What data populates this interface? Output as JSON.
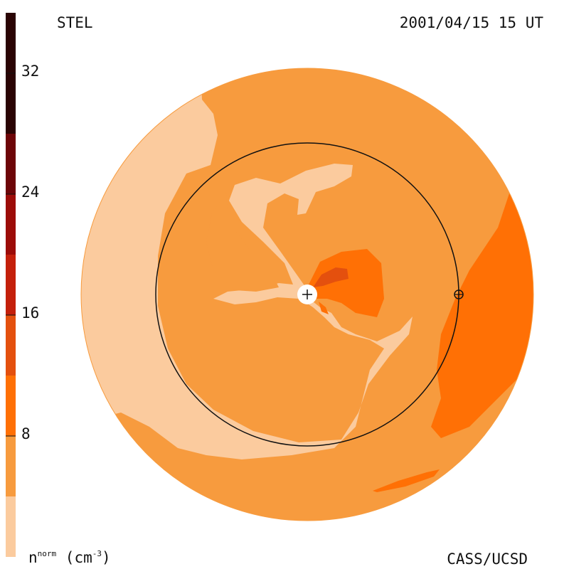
{
  "header": {
    "model": "STEL",
    "datetime": "2001/04/15 15 UT"
  },
  "footer": {
    "credit": "CASS/UCSD"
  },
  "colorbar": {
    "unit_prefix": "n",
    "unit_sup": "norm",
    "unit_suffix": " (cm",
    "unit_exp": "-3",
    "unit_close": ")",
    "ticks": [
      "32",
      "24",
      "16",
      "8"
    ],
    "levels": [
      {
        "from": 0,
        "to": 4,
        "color": "#fbcb9e"
      },
      {
        "from": 4,
        "to": 8,
        "color": "#f79b3e"
      },
      {
        "from": 8,
        "to": 12,
        "color": "#ff7005"
      },
      {
        "from": 12,
        "to": 16,
        "color": "#e4500e"
      },
      {
        "from": 16,
        "to": 20,
        "color": "#c4200b"
      },
      {
        "from": 20,
        "to": 24,
        "color": "#9c0c08"
      },
      {
        "from": 24,
        "to": 28,
        "color": "#6d0508"
      },
      {
        "from": 28,
        "to": 36,
        "color": "#2a0404"
      }
    ]
  },
  "colors": {
    "level1": "#fbcb9e",
    "level2": "#f79b3e",
    "level3": "#ff7005",
    "level4": "#e4500e",
    "level5": "#c4200b",
    "outline": "#111111"
  }
}
